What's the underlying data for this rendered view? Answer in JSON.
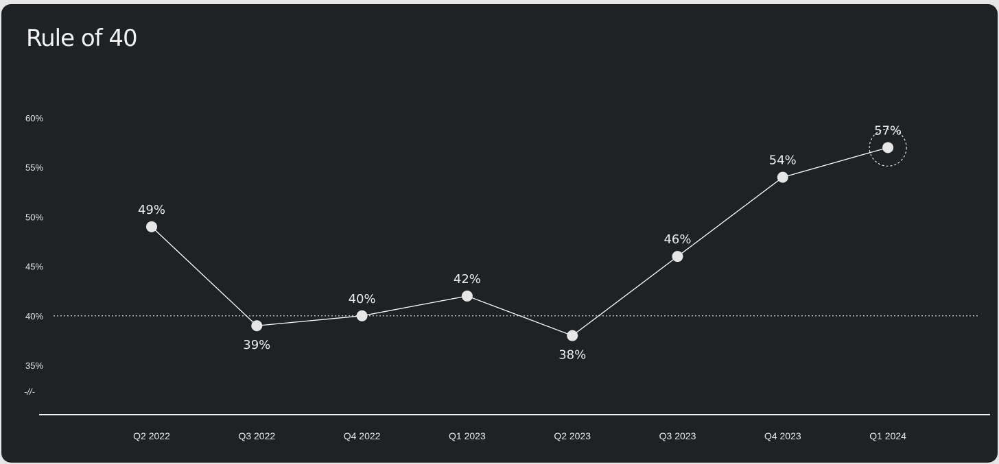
{
  "title": "Rule of 40",
  "axis_break_symbol": "-//-",
  "colors": {
    "background": "#1f2225",
    "line": "#ffffff",
    "marker": "#e6e6e6",
    "text": "#ededed"
  },
  "chart_data": {
    "type": "line",
    "title": "Rule of 40",
    "xlabel": "",
    "ylabel": "",
    "categories": [
      "Q2 2022",
      "Q3 2022",
      "Q4 2022",
      "Q1 2023",
      "Q2 2023",
      "Q3 2023",
      "Q4 2023",
      "Q1 2024"
    ],
    "values": [
      49,
      39,
      40,
      42,
      38,
      46,
      54,
      57
    ],
    "value_labels": [
      "49%",
      "39%",
      "40%",
      "42%",
      "38%",
      "46%",
      "54%",
      "57%"
    ],
    "label_positions": [
      "above",
      "below",
      "above",
      "above",
      "below",
      "above",
      "above",
      "above"
    ],
    "highlighted_index": 7,
    "y_ticks": [
      35,
      40,
      45,
      50,
      55,
      60
    ],
    "y_tick_labels": [
      "35%",
      "40%",
      "45%",
      "50%",
      "55%",
      "60%"
    ],
    "ylim": [
      35,
      60
    ],
    "y_axis_break": true,
    "reference_line": {
      "value": 40,
      "style": "dotted"
    },
    "grid": false,
    "legend": "none"
  }
}
